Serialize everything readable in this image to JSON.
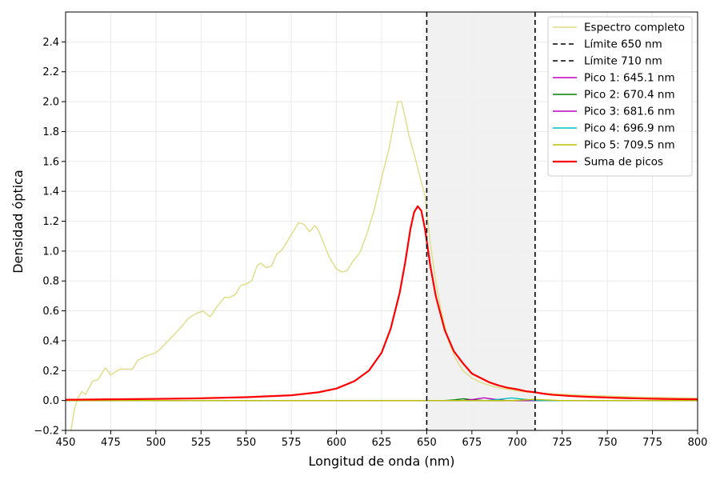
{
  "chart_data": {
    "type": "line",
    "xlabel": "Longitud de onda (nm)",
    "ylabel": "Densidad óptica",
    "xlim": [
      450,
      800
    ],
    "ylim": [
      -0.2,
      2.6
    ],
    "xticks": [
      450,
      475,
      500,
      525,
      550,
      575,
      600,
      625,
      650,
      675,
      700,
      725,
      750,
      775,
      800
    ],
    "yticks": [
      -0.2,
      0.0,
      0.2,
      0.4,
      0.6,
      0.8,
      1.0,
      1.2,
      1.4,
      1.6,
      1.8,
      2.0,
      2.2,
      2.4
    ],
    "grid": true,
    "legend_position": "top-right",
    "shaded_region": {
      "x_start": 650,
      "x_end": 710,
      "color": "#f0f0f0"
    },
    "vlines": [
      {
        "x": 650,
        "label": "Límite 650 nm",
        "color": "#000000",
        "style": "dashed"
      },
      {
        "x": 710,
        "label": "Límite 710 nm",
        "color": "#000000",
        "style": "dashed"
      }
    ],
    "series": [
      {
        "name": "Espectro completo",
        "color": "#e0dc85",
        "x": [
          453,
          455,
          457,
          459,
          461,
          465,
          468,
          472,
          475,
          480,
          483,
          487,
          490,
          495,
          500,
          503,
          506,
          510,
          514,
          518,
          522,
          526,
          530,
          534,
          538,
          541,
          544,
          547,
          550,
          553,
          556,
          558,
          561,
          564,
          567,
          570,
          573,
          576,
          579,
          582,
          585,
          588,
          590,
          593,
          596,
          600,
          603,
          606,
          609,
          613,
          617,
          621,
          625,
          629,
          632,
          634,
          636,
          638,
          640,
          643,
          646,
          649,
          652,
          655,
          658,
          662,
          666,
          670,
          675,
          680,
          685,
          690,
          695,
          700,
          705,
          710,
          715,
          720,
          725,
          730,
          735,
          740,
          745,
          750,
          755,
          760,
          765,
          770,
          775,
          780,
          785,
          790,
          795,
          800
        ],
        "values": [
          -0.2,
          -0.05,
          0.02,
          0.06,
          0.04,
          0.13,
          0.14,
          0.22,
          0.17,
          0.21,
          0.21,
          0.21,
          0.27,
          0.3,
          0.32,
          0.35,
          0.39,
          0.44,
          0.49,
          0.55,
          0.58,
          0.6,
          0.56,
          0.63,
          0.69,
          0.69,
          0.71,
          0.77,
          0.78,
          0.8,
          0.9,
          0.92,
          0.89,
          0.9,
          0.98,
          1.01,
          1.07,
          1.13,
          1.19,
          1.18,
          1.13,
          1.17,
          1.14,
          1.05,
          0.96,
          0.88,
          0.86,
          0.87,
          0.93,
          0.99,
          1.12,
          1.28,
          1.49,
          1.68,
          1.87,
          2.0,
          2.0,
          1.9,
          1.78,
          1.65,
          1.51,
          1.37,
          1.05,
          0.8,
          0.6,
          0.4,
          0.28,
          0.2,
          0.15,
          0.12,
          0.1,
          0.085,
          0.075,
          0.065,
          0.057,
          0.052,
          0.048,
          0.045,
          0.042,
          0.039,
          0.036,
          0.034,
          0.032,
          0.03,
          0.028,
          0.026,
          0.024,
          0.022,
          0.021,
          0.02,
          0.019,
          0.018,
          0.017,
          0.016
        ]
      },
      {
        "name": "Pico 1: 645.1 nm",
        "color": "#bf00bf",
        "x": [
          450,
          680,
          700,
          800
        ],
        "values": [
          0.0,
          0.0,
          0.0,
          0.0
        ]
      },
      {
        "name": "Pico 2: 670.4 nm",
        "color": "#008000",
        "x": [
          450,
          660,
          665,
          670.4,
          676,
          682,
          800
        ],
        "values": [
          0.0,
          0.0,
          0.004,
          0.012,
          0.004,
          0.0,
          0.0
        ]
      },
      {
        "name": "Pico 3: 681.6 nm",
        "color": "#bf00bf",
        "x": [
          450,
          670,
          676,
          681.6,
          688,
          694,
          800
        ],
        "values": [
          0.0,
          0.0,
          0.008,
          0.018,
          0.008,
          0.0,
          0.0
        ]
      },
      {
        "name": "Pico 4: 696.9 nm",
        "color": "#00bfbf",
        "x": [
          450,
          683,
          690,
          696.9,
          704,
          712,
          800
        ],
        "values": [
          0.0,
          0.0,
          0.008,
          0.017,
          0.008,
          0.0,
          0.0
        ]
      },
      {
        "name": "Pico 5: 709.5 nm",
        "color": "#bfbf00",
        "x": [
          450,
          698,
          704,
          709.5,
          716,
          724,
          800
        ],
        "values": [
          0.0,
          0.0,
          0.004,
          0.008,
          0.004,
          0.0,
          0.0
        ]
      },
      {
        "name": "Suma de picos",
        "color": "#ff0000",
        "x": [
          450,
          475,
          500,
          525,
          550,
          575,
          590,
          600,
          610,
          618,
          625,
          630,
          635,
          638,
          641,
          643,
          645,
          647,
          649,
          652,
          655,
          660,
          665,
          670,
          675,
          680,
          685,
          690,
          695,
          700,
          705,
          710,
          715,
          720,
          730,
          740,
          750,
          760,
          770,
          780,
          790,
          800
        ],
        "values": [
          0.005,
          0.008,
          0.011,
          0.015,
          0.022,
          0.035,
          0.055,
          0.08,
          0.13,
          0.2,
          0.32,
          0.48,
          0.72,
          0.92,
          1.15,
          1.26,
          1.3,
          1.27,
          1.15,
          0.9,
          0.7,
          0.47,
          0.33,
          0.25,
          0.18,
          0.15,
          0.12,
          0.1,
          0.085,
          0.075,
          0.062,
          0.055,
          0.045,
          0.038,
          0.03,
          0.024,
          0.02,
          0.016,
          0.013,
          0.011,
          0.009,
          0.008
        ]
      }
    ]
  }
}
